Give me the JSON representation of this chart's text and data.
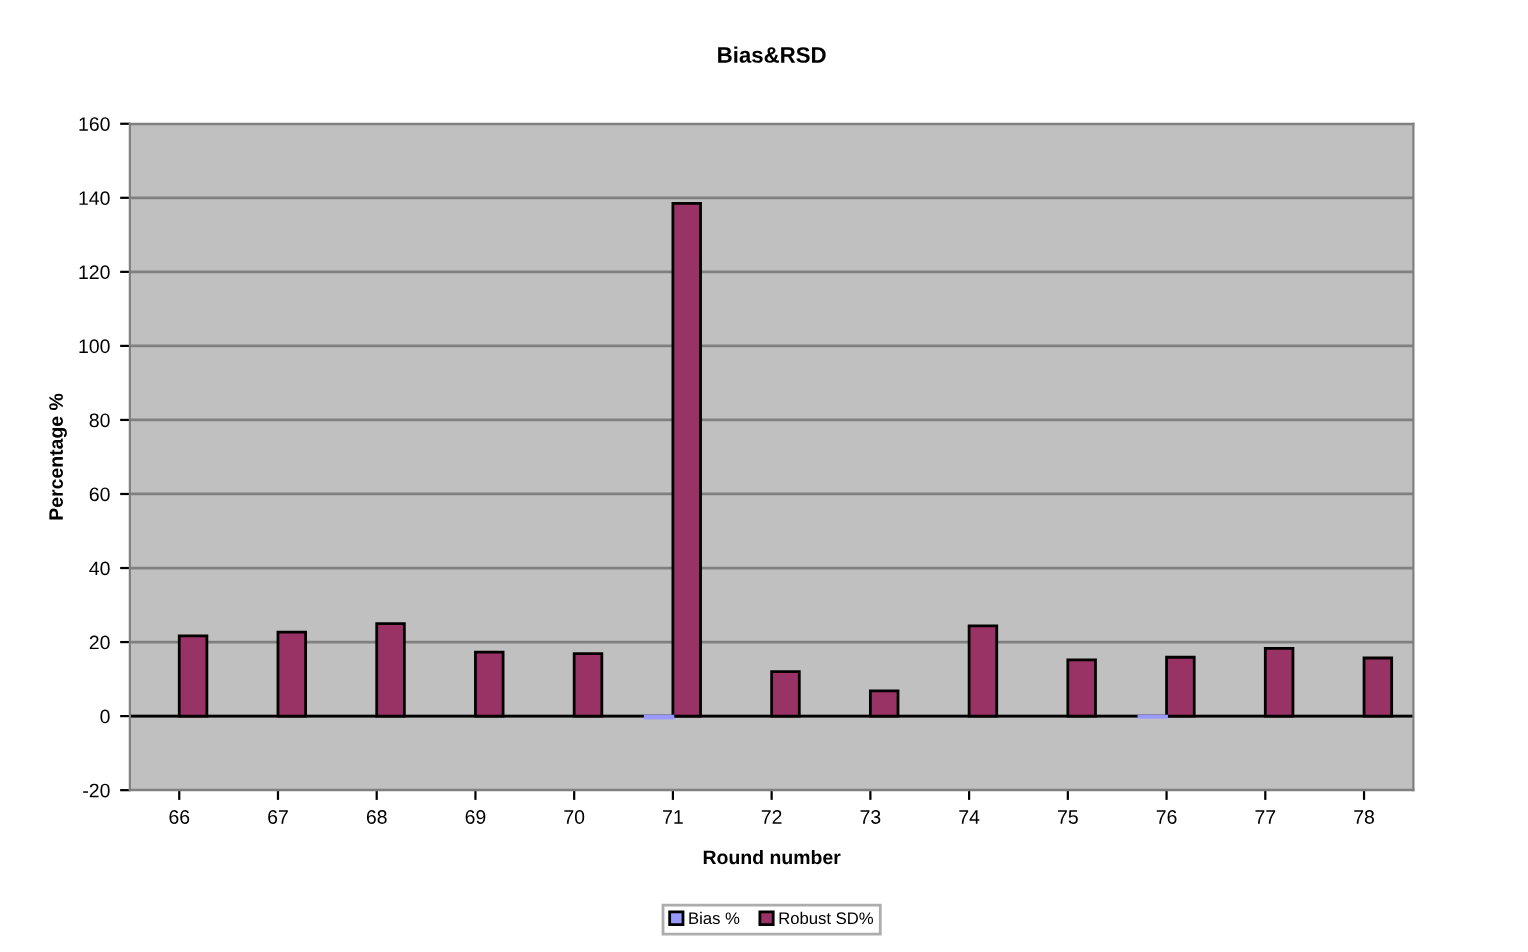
{
  "chart_data": {
    "type": "bar",
    "title": "Bias&RSD",
    "xlabel": "Round number",
    "ylabel": "Percentage %",
    "categories": [
      "66",
      "67",
      "68",
      "69",
      "70",
      "71",
      "72",
      "73",
      "74",
      "75",
      "76",
      "77",
      "78"
    ],
    "series": [
      {
        "name": "Bias %",
        "color": "#9999ff",
        "values": [
          null,
          null,
          null,
          null,
          null,
          -0.5,
          null,
          null,
          null,
          null,
          -0.3,
          null,
          null
        ]
      },
      {
        "name": "Robust SD%",
        "color": "#993366",
        "values": [
          21.7,
          22.7,
          25,
          17.3,
          16.9,
          138.5,
          12,
          6.8,
          24.4,
          15.2,
          15.9,
          18.3,
          15.7
        ]
      }
    ],
    "ylim": [
      -20,
      160
    ],
    "yticks": [
      -20,
      0,
      20,
      40,
      60,
      80,
      100,
      120,
      140,
      160
    ],
    "grid": "y",
    "legend": "bottom"
  }
}
